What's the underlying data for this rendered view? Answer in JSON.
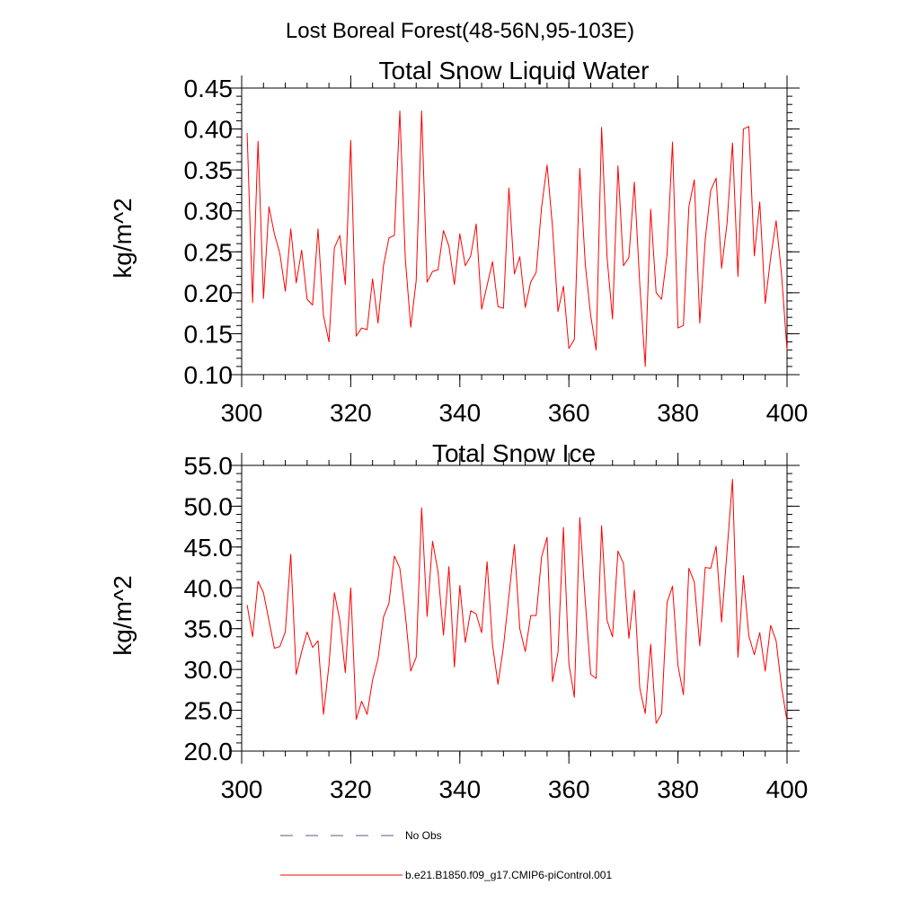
{
  "figure": {
    "title": "Lost Boreal Forest(48-56N,95-103E)"
  },
  "colors": {
    "model_line": "#ff0000",
    "obs_line": "#5a5a8a",
    "axis": "#000000"
  },
  "legend": {
    "items": [
      {
        "label": "No Obs",
        "style": "dashed"
      },
      {
        "label": "b.e21.B1850.f09_g17.CMIP6-piControl.001",
        "style": "solid"
      }
    ]
  },
  "chart_data": [
    {
      "type": "line",
      "title": "Total Snow Liquid Water",
      "xlabel": "",
      "ylabel": "kg/m^2",
      "xlim": [
        300,
        400
      ],
      "ylim": [
        0.1,
        0.45
      ],
      "xticks": [
        300,
        320,
        340,
        360,
        380,
        400
      ],
      "xtick_labels": [
        "300",
        "320",
        "340",
        "360",
        "380",
        "400"
      ],
      "yticks": [
        0.1,
        0.15,
        0.2,
        0.25,
        0.3,
        0.35,
        0.4,
        0.45
      ],
      "ytick_labels": [
        "0.10",
        "0.15",
        "0.20",
        "0.25",
        "0.30",
        "0.35",
        "0.40",
        "0.45"
      ],
      "x_start": 301,
      "x_step": 1,
      "series": [
        {
          "name": "b.e21.B1850.f09_g17.CMIP6-piControl.001",
          "values": [
            0.395,
            0.188,
            0.385,
            0.193,
            0.305,
            0.272,
            0.248,
            0.202,
            0.278,
            0.212,
            0.252,
            0.192,
            0.185,
            0.278,
            0.172,
            0.14,
            0.255,
            0.27,
            0.21,
            0.386,
            0.147,
            0.157,
            0.155,
            0.217,
            0.163,
            0.233,
            0.267,
            0.27,
            0.422,
            0.242,
            0.158,
            0.215,
            0.422,
            0.213,
            0.226,
            0.228,
            0.276,
            0.257,
            0.21,
            0.272,
            0.233,
            0.245,
            0.284,
            0.18,
            0.209,
            0.238,
            0.183,
            0.181,
            0.328,
            0.223,
            0.244,
            0.182,
            0.213,
            0.225,
            0.305,
            0.356,
            0.28,
            0.177,
            0.208,
            0.132,
            0.143,
            0.352,
            0.235,
            0.172,
            0.13,
            0.402,
            0.243,
            0.168,
            0.355,
            0.233,
            0.243,
            0.335,
            0.21,
            0.11,
            0.302,
            0.2,
            0.192,
            0.247,
            0.384,
            0.157,
            0.16,
            0.305,
            0.338,
            0.163,
            0.265,
            0.325,
            0.34,
            0.23,
            0.285,
            0.383,
            0.22,
            0.4,
            0.403,
            0.245,
            0.311,
            0.187,
            0.243,
            0.288,
            0.222,
            0.13
          ]
        }
      ]
    },
    {
      "type": "line",
      "title": "Total Snow Ice",
      "xlabel": "",
      "ylabel": "kg/m^2",
      "xlim": [
        300,
        400
      ],
      "ylim": [
        20,
        55
      ],
      "xticks": [
        300,
        320,
        340,
        360,
        380,
        400
      ],
      "xtick_labels": [
        "300",
        "320",
        "340",
        "360",
        "380",
        "400"
      ],
      "yticks": [
        20,
        25,
        30,
        35,
        40,
        45,
        50,
        55
      ],
      "ytick_labels": [
        "20.0",
        "25.0",
        "30.0",
        "35.0",
        "40.0",
        "45.0",
        "50.0",
        "55.0"
      ],
      "x_start": 301,
      "x_step": 1,
      "series": [
        {
          "name": "b.e21.B1850.f09_g17.CMIP6-piControl.001",
          "values": [
            37.9,
            34.0,
            40.8,
            39.4,
            36.0,
            32.6,
            32.8,
            34.6,
            44.1,
            29.4,
            32.2,
            34.6,
            32.7,
            33.5,
            24.5,
            30.5,
            39.4,
            36.0,
            29.6,
            40.0,
            23.9,
            26.1,
            24.5,
            28.7,
            31.3,
            36.4,
            38.1,
            43.9,
            42.4,
            36.8,
            29.8,
            31.5,
            49.8,
            36.5,
            45.7,
            42.0,
            34.2,
            42.6,
            30.3,
            40.3,
            33.3,
            37.2,
            36.8,
            34.5,
            43.2,
            33.0,
            28.2,
            32.8,
            39.0,
            45.3,
            35.0,
            32.2,
            36.6,
            36.6,
            43.8,
            46.2,
            28.5,
            32.1,
            47.4,
            30.7,
            26.6,
            48.6,
            38.4,
            29.4,
            28.9,
            47.6,
            36.0,
            34.0,
            44.5,
            43.0,
            33.8,
            39.7,
            27.7,
            24.6,
            33.1,
            23.4,
            24.6,
            38.2,
            40.2,
            30.5,
            26.9,
            42.4,
            40.7,
            32.9,
            42.5,
            42.4,
            45.1,
            35.8,
            44.5,
            53.3,
            31.5,
            41.5,
            34.1,
            31.8,
            34.5,
            29.8,
            35.4,
            33.5,
            27.8,
            23.7
          ]
        }
      ]
    }
  ]
}
